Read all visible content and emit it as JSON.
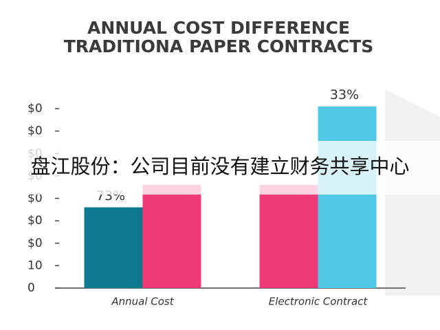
{
  "chart_data": {
    "type": "bar",
    "title_lines": [
      "ANNUAL COST DIFFERENCE",
      "TRADITIONA PAPER CONTRACTS"
    ],
    "categories": [
      "Annual Cost",
      "Electronic Contract"
    ],
    "series": [
      {
        "color": "#0e7a91",
        "values": [
          36,
          null
        ]
      },
      {
        "color": "#f03a78",
        "values": [
          46,
          46
        ]
      },
      {
        "color": "#50c8e6",
        "values": [
          null,
          81
        ]
      }
    ],
    "annotations": [
      {
        "series": 0,
        "category": 0,
        "text": "73%"
      },
      {
        "series": 2,
        "category": 1,
        "text": "33%"
      }
    ],
    "ylim": [
      0,
      85
    ],
    "yticks": [
      0,
      10,
      {
        "value": 20,
        "label": "$0"
      },
      {
        "value": 30,
        "label": "$0"
      },
      {
        "value": 40,
        "label": "$0"
      },
      {
        "value": 50,
        "label": "$0"
      },
      {
        "value": 60,
        "label": "$0"
      },
      {
        "value": 70,
        "label": "$0"
      },
      {
        "value": 80,
        "label": "$0"
      }
    ],
    "overlay_text": "盘江股份：公司目前没有建立财务共享中心"
  }
}
